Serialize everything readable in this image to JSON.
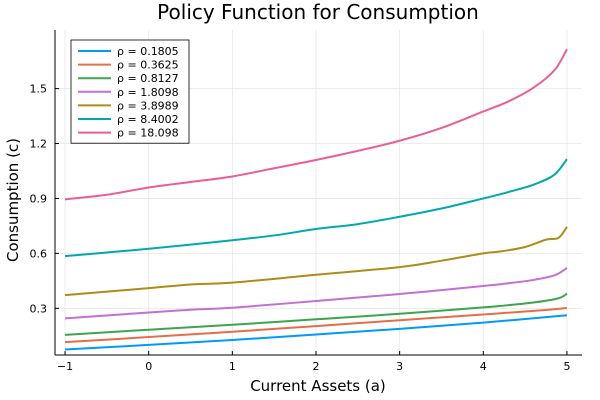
{
  "chart_data": {
    "type": "line",
    "title": "Policy Function for Consumption",
    "xlabel": "Current Assets (a)",
    "ylabel": "Consumption (c)",
    "xlim": [
      -1.12,
      5.18
    ],
    "ylim": [
      0.045,
      1.82
    ],
    "xticks": [
      -1,
      0,
      1,
      2,
      3,
      4,
      5
    ],
    "xtick_labels": [
      "−1",
      "0",
      "1",
      "2",
      "3",
      "4",
      "5"
    ],
    "yticks": [
      0.3,
      0.6,
      0.9,
      1.2,
      1.5
    ],
    "ytick_labels": [
      "0.3",
      "0.6",
      "0.9",
      "1.2",
      "1.5"
    ],
    "grid": true,
    "legend_position": "top-left",
    "series": [
      {
        "name": "ρ = 0.1805",
        "color": "#009AFA",
        "points": [
          [
            -1,
            0.075
          ],
          [
            0,
            0.1
          ],
          [
            1,
            0.127
          ],
          [
            2,
            0.157
          ],
          [
            3,
            0.188
          ],
          [
            4,
            0.222
          ],
          [
            5,
            0.262
          ]
        ]
      },
      {
        "name": "ρ = 0.3625",
        "color": "#E36F47",
        "points": [
          [
            -1,
            0.115
          ],
          [
            0,
            0.143
          ],
          [
            1,
            0.172
          ],
          [
            2,
            0.203
          ],
          [
            3,
            0.235
          ],
          [
            4,
            0.266
          ],
          [
            4.8,
            0.293
          ],
          [
            5,
            0.302
          ]
        ]
      },
      {
        "name": "ρ = 0.8127",
        "color": "#3EA44E",
        "points": [
          [
            -1,
            0.155
          ],
          [
            0,
            0.183
          ],
          [
            1,
            0.21
          ],
          [
            2,
            0.24
          ],
          [
            3,
            0.27
          ],
          [
            4,
            0.305
          ],
          [
            4.6,
            0.332
          ],
          [
            4.9,
            0.355
          ],
          [
            5,
            0.38
          ]
        ]
      },
      {
        "name": "ρ = 1.8098",
        "color": "#C271D2",
        "points": [
          [
            -1,
            0.245
          ],
          [
            0,
            0.277
          ],
          [
            0.5,
            0.292
          ],
          [
            1,
            0.303
          ],
          [
            2,
            0.34
          ],
          [
            3,
            0.378
          ],
          [
            4,
            0.422
          ],
          [
            4.3,
            0.437
          ],
          [
            4.6,
            0.455
          ],
          [
            4.85,
            0.48
          ],
          [
            5,
            0.52
          ]
        ]
      },
      {
        "name": "ρ = 3.8989",
        "color": "#AC8D18",
        "points": [
          [
            -1,
            0.372
          ],
          [
            0,
            0.41
          ],
          [
            0.5,
            0.43
          ],
          [
            1,
            0.44
          ],
          [
            2,
            0.483
          ],
          [
            3,
            0.525
          ],
          [
            3.5,
            0.56
          ],
          [
            4,
            0.6
          ],
          [
            4.2,
            0.61
          ],
          [
            4.5,
            0.635
          ],
          [
            4.75,
            0.675
          ],
          [
            4.9,
            0.685
          ],
          [
            5,
            0.745
          ]
        ]
      },
      {
        "name": "ρ = 8.4002",
        "color": "#00A9AD",
        "points": [
          [
            -1,
            0.585
          ],
          [
            -0.5,
            0.605
          ],
          [
            0,
            0.625
          ],
          [
            0.5,
            0.648
          ],
          [
            1,
            0.672
          ],
          [
            1.5,
            0.698
          ],
          [
            2,
            0.733
          ],
          [
            2.5,
            0.76
          ],
          [
            3,
            0.8
          ],
          [
            3.5,
            0.845
          ],
          [
            4,
            0.9
          ],
          [
            4.3,
            0.935
          ],
          [
            4.6,
            0.975
          ],
          [
            4.85,
            1.03
          ],
          [
            5,
            1.115
          ]
        ]
      },
      {
        "name": "ρ = 18.098",
        "color": "#EB5D98",
        "points": [
          [
            -1,
            0.895
          ],
          [
            -0.5,
            0.92
          ],
          [
            0,
            0.96
          ],
          [
            0.5,
            0.99
          ],
          [
            1,
            1.02
          ],
          [
            1.5,
            1.065
          ],
          [
            2,
            1.11
          ],
          [
            2.5,
            1.16
          ],
          [
            3,
            1.215
          ],
          [
            3.5,
            1.285
          ],
          [
            4,
            1.375
          ],
          [
            4.3,
            1.43
          ],
          [
            4.6,
            1.505
          ],
          [
            4.85,
            1.6
          ],
          [
            5,
            1.715
          ]
        ]
      }
    ]
  }
}
